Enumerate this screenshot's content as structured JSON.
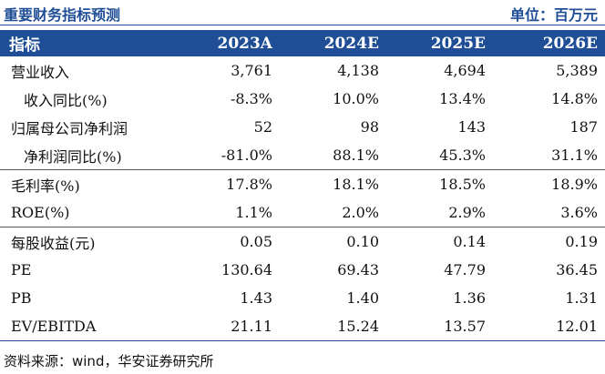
{
  "header": {
    "title": "重要财务指标预测",
    "unit": "单位：百万元"
  },
  "table": {
    "columns": [
      "指标",
      "2023A",
      "2024E",
      "2025E",
      "2026E"
    ],
    "rows": [
      {
        "label": "营业收入",
        "values": [
          "3,761",
          "4,138",
          "4,694",
          "5,389"
        ]
      },
      {
        "label": "收入同比(%)",
        "values": [
          "-8.3%",
          "10.0%",
          "13.4%",
          "14.8%"
        ]
      },
      {
        "label": "归属母公司净利润",
        "values": [
          "52",
          "98",
          "143",
          "187"
        ]
      },
      {
        "label": "净利润同比(%)",
        "values": [
          "-81.0%",
          "88.1%",
          "45.3%",
          "31.1%"
        ]
      },
      {
        "label": "毛利率(%)",
        "values": [
          "17.8%",
          "18.1%",
          "18.5%",
          "18.9%"
        ]
      },
      {
        "label": "ROE(%)",
        "values": [
          "1.1%",
          "2.0%",
          "2.9%",
          "3.6%"
        ]
      },
      {
        "label": "每股收益(元)",
        "values": [
          "0.05",
          "0.10",
          "0.14",
          "0.19"
        ]
      },
      {
        "label": "PE",
        "values": [
          "130.64",
          "69.43",
          "47.79",
          "36.45"
        ]
      },
      {
        "label": "PB",
        "values": [
          "1.43",
          "1.40",
          "1.36",
          "1.31"
        ]
      },
      {
        "label": "EV/EBITDA",
        "values": [
          "21.11",
          "15.24",
          "13.57",
          "12.01"
        ]
      }
    ]
  },
  "footer": {
    "source": "资料来源：wind，华安证券研究所"
  },
  "colors": {
    "accent": "#1f4e96"
  }
}
